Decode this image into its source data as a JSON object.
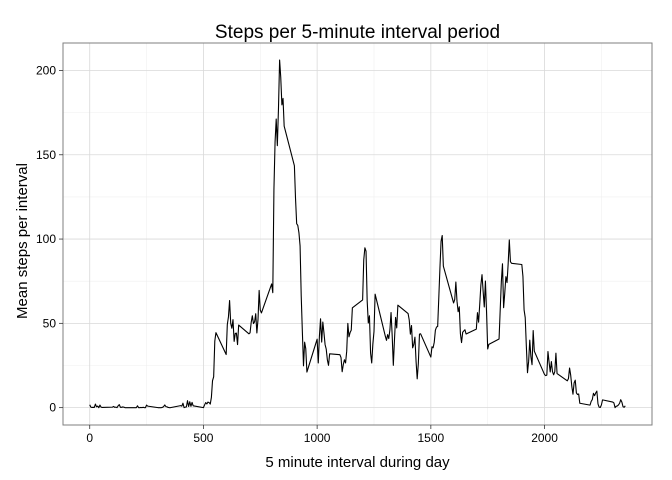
{
  "chart_data": {
    "type": "line",
    "title": "Steps per 5-minute interval period",
    "xlabel": "5 minute interval during day",
    "ylabel": "Mean steps per interval",
    "xlim": [
      -117.5,
      2472.5
    ],
    "ylim": [
      -10.3,
      216.3
    ],
    "x_ticks": [
      0,
      500,
      1000,
      1500,
      2000
    ],
    "x_minor_ticks": [
      250,
      750,
      1250,
      1750,
      2250
    ],
    "y_ticks": [
      0,
      50,
      100,
      150,
      200
    ],
    "y_minor_ticks": [
      25,
      75,
      125,
      175
    ],
    "grid": true,
    "legend": "none",
    "colors": {
      "line": "#000000",
      "grid_major": "#d9d9d9",
      "grid_minor": "#efefef",
      "border": "#7f7f7f"
    },
    "series": [
      {
        "values": [
          [
            0,
            1.7
          ],
          [
            5,
            0.3
          ],
          [
            10,
            0.1
          ],
          [
            15,
            0.2
          ],
          [
            20,
            0.1
          ],
          [
            25,
            2.1
          ],
          [
            30,
            0.5
          ],
          [
            35,
            0.9
          ],
          [
            40,
            0
          ],
          [
            45,
            1.5
          ],
          [
            50,
            0.3
          ],
          [
            55,
            0.1
          ],
          [
            100,
            0.3
          ],
          [
            105,
            0.7
          ],
          [
            110,
            0.2
          ],
          [
            115,
            0.3
          ],
          [
            120,
            0
          ],
          [
            125,
            1.1
          ],
          [
            130,
            1.8
          ],
          [
            135,
            0.2
          ],
          [
            140,
            0.2
          ],
          [
            145,
            0.4
          ],
          [
            150,
            0.3
          ],
          [
            155,
            0
          ],
          [
            200,
            0
          ],
          [
            205,
            0
          ],
          [
            210,
            1.1
          ],
          [
            215,
            0
          ],
          [
            220,
            0
          ],
          [
            225,
            0.1
          ],
          [
            230,
            0
          ],
          [
            235,
            0.2
          ],
          [
            240,
            0
          ],
          [
            245,
            0
          ],
          [
            250,
            1.5
          ],
          [
            255,
            0.9
          ],
          [
            300,
            0
          ],
          [
            305,
            0
          ],
          [
            310,
            0
          ],
          [
            315,
            0
          ],
          [
            320,
            0.2
          ],
          [
            325,
            0.6
          ],
          [
            330,
            1.6
          ],
          [
            335,
            0.6
          ],
          [
            340,
            0.5
          ],
          [
            345,
            0.1
          ],
          [
            350,
            0
          ],
          [
            355,
            0
          ],
          [
            400,
            1.2
          ],
          [
            405,
            0.9
          ],
          [
            410,
            2.6
          ],
          [
            415,
            0
          ],
          [
            420,
            0.3
          ],
          [
            425,
            0.4
          ],
          [
            430,
            4.1
          ],
          [
            435,
            0.7
          ],
          [
            440,
            3.5
          ],
          [
            445,
            0.8
          ],
          [
            450,
            3.1
          ],
          [
            455,
            1.1
          ],
          [
            500,
            0
          ],
          [
            505,
            1.6
          ],
          [
            510,
            3.0
          ],
          [
            515,
            2.2
          ],
          [
            520,
            3.3
          ],
          [
            525,
            3.0
          ],
          [
            530,
            2.1
          ],
          [
            535,
            6.1
          ],
          [
            540,
            16.0
          ],
          [
            545,
            18.3
          ],
          [
            550,
            39.5
          ],
          [
            555,
            44.5
          ],
          [
            600,
            31.5
          ],
          [
            605,
            49.3
          ],
          [
            610,
            53.8
          ],
          [
            615,
            63.5
          ],
          [
            620,
            50.0
          ],
          [
            625,
            47.1
          ],
          [
            630,
            52.2
          ],
          [
            635,
            39.3
          ],
          [
            640,
            44.0
          ],
          [
            645,
            44.2
          ],
          [
            650,
            37.4
          ],
          [
            655,
            49.0
          ],
          [
            700,
            43.8
          ],
          [
            705,
            44.4
          ],
          [
            710,
            50.5
          ],
          [
            715,
            54.5
          ],
          [
            720,
            49.9
          ],
          [
            725,
            50.9
          ],
          [
            730,
            55.7
          ],
          [
            735,
            44.3
          ],
          [
            740,
            52.3
          ],
          [
            745,
            69.5
          ],
          [
            750,
            57.8
          ],
          [
            755,
            56.2
          ],
          [
            800,
            73.4
          ],
          [
            805,
            68.2
          ],
          [
            810,
            129.4
          ],
          [
            815,
            157.5
          ],
          [
            820,
            171.2
          ],
          [
            825,
            155.4
          ],
          [
            830,
            177.3
          ],
          [
            835,
            206.2
          ],
          [
            840,
            195.9
          ],
          [
            845,
            179.6
          ],
          [
            850,
            183.4
          ],
          [
            855,
            167.0
          ],
          [
            900,
            143.5
          ],
          [
            905,
            124.0
          ],
          [
            910,
            109.1
          ],
          [
            915,
            108.1
          ],
          [
            920,
            103.7
          ],
          [
            925,
            95.9
          ],
          [
            930,
            66.2
          ],
          [
            935,
            45.2
          ],
          [
            940,
            24.8
          ],
          [
            945,
            38.8
          ],
          [
            950,
            35.0
          ],
          [
            955,
            21.1
          ],
          [
            1000,
            40.6
          ],
          [
            1005,
            26.5
          ],
          [
            1010,
            42.4
          ],
          [
            1015,
            52.7
          ],
          [
            1020,
            38.9
          ],
          [
            1025,
            50.8
          ],
          [
            1030,
            44.3
          ],
          [
            1035,
            37.4
          ],
          [
            1040,
            34.7
          ],
          [
            1045,
            28.3
          ],
          [
            1050,
            25.1
          ],
          [
            1055,
            31.9
          ],
          [
            1100,
            31.4
          ],
          [
            1105,
            29.7
          ],
          [
            1110,
            21.3
          ],
          [
            1115,
            25.5
          ],
          [
            1120,
            28.4
          ],
          [
            1125,
            26.5
          ],
          [
            1130,
            33.4
          ],
          [
            1135,
            49.98
          ],
          [
            1140,
            42.0
          ],
          [
            1145,
            44.6
          ],
          [
            1150,
            46.0
          ],
          [
            1155,
            59.2
          ],
          [
            1200,
            63.9
          ],
          [
            1205,
            87.7
          ],
          [
            1210,
            94.8
          ],
          [
            1215,
            92.8
          ],
          [
            1220,
            63.4
          ],
          [
            1225,
            50.2
          ],
          [
            1230,
            54.5
          ],
          [
            1235,
            32.4
          ],
          [
            1240,
            26.5
          ],
          [
            1245,
            37.7
          ],
          [
            1250,
            45.1
          ],
          [
            1255,
            67.3
          ],
          [
            1300,
            42.3
          ],
          [
            1305,
            39.9
          ],
          [
            1310,
            43.3
          ],
          [
            1315,
            40.98
          ],
          [
            1320,
            46.2
          ],
          [
            1325,
            56.4
          ],
          [
            1330,
            42.8
          ],
          [
            1335,
            25.1
          ],
          [
            1340,
            39.98
          ],
          [
            1345,
            53.5
          ],
          [
            1350,
            47.3
          ],
          [
            1355,
            60.8
          ],
          [
            1400,
            55.8
          ],
          [
            1405,
            51.96
          ],
          [
            1410,
            43.6
          ],
          [
            1415,
            48.7
          ],
          [
            1420,
            35.5
          ],
          [
            1425,
            37.5
          ],
          [
            1430,
            41.8
          ],
          [
            1435,
            27.5
          ],
          [
            1440,
            17.1
          ],
          [
            1445,
            26.1
          ],
          [
            1450,
            43.6
          ],
          [
            1455,
            43.8
          ],
          [
            1500,
            30.0
          ],
          [
            1505,
            36.1
          ],
          [
            1510,
            35.5
          ],
          [
            1515,
            38.8
          ],
          [
            1520,
            45.96
          ],
          [
            1525,
            47.8
          ],
          [
            1530,
            48.1
          ],
          [
            1535,
            65.3
          ],
          [
            1540,
            82.9
          ],
          [
            1545,
            98.7
          ],
          [
            1550,
            102.1
          ],
          [
            1555,
            83.96
          ],
          [
            1600,
            62.1
          ],
          [
            1605,
            64.1
          ],
          [
            1610,
            74.5
          ],
          [
            1615,
            63.2
          ],
          [
            1620,
            56.9
          ],
          [
            1625,
            59.8
          ],
          [
            1630,
            43.9
          ],
          [
            1635,
            38.6
          ],
          [
            1640,
            44.7
          ],
          [
            1645,
            45.5
          ],
          [
            1650,
            46.2
          ],
          [
            1655,
            43.7
          ],
          [
            1700,
            46.6
          ],
          [
            1705,
            56.3
          ],
          [
            1710,
            50.7
          ],
          [
            1715,
            61.2
          ],
          [
            1720,
            72.7
          ],
          [
            1725,
            78.9
          ],
          [
            1730,
            68.9
          ],
          [
            1735,
            59.7
          ],
          [
            1740,
            75.1
          ],
          [
            1745,
            56.5
          ],
          [
            1750,
            34.8
          ],
          [
            1755,
            37.5
          ],
          [
            1800,
            40.7
          ],
          [
            1805,
            58.0
          ],
          [
            1810,
            74.7
          ],
          [
            1815,
            85.3
          ],
          [
            1820,
            59.3
          ],
          [
            1825,
            67.8
          ],
          [
            1830,
            77.7
          ],
          [
            1835,
            74.2
          ],
          [
            1840,
            85.3
          ],
          [
            1845,
            99.5
          ],
          [
            1850,
            86.6
          ],
          [
            1855,
            85.6
          ],
          [
            1900,
            84.9
          ],
          [
            1905,
            77.8
          ],
          [
            1910,
            58.0
          ],
          [
            1915,
            53.4
          ],
          [
            1920,
            36.3
          ],
          [
            1925,
            20.7
          ],
          [
            1930,
            27.4
          ],
          [
            1935,
            40.0
          ],
          [
            1940,
            30.2
          ],
          [
            1945,
            25.5
          ],
          [
            1950,
            45.7
          ],
          [
            1955,
            33.5
          ],
          [
            2000,
            19.6
          ],
          [
            2005,
            19.0
          ],
          [
            2010,
            19.3
          ],
          [
            2015,
            33.3
          ],
          [
            2020,
            26.8
          ],
          [
            2025,
            21.2
          ],
          [
            2030,
            27.3
          ],
          [
            2035,
            21.3
          ],
          [
            2040,
            19.5
          ],
          [
            2045,
            21.3
          ],
          [
            2050,
            32.3
          ],
          [
            2055,
            20.2
          ],
          [
            2100,
            15.9
          ],
          [
            2105,
            17.2
          ],
          [
            2110,
            23.5
          ],
          [
            2115,
            19.2
          ],
          [
            2120,
            12.5
          ],
          [
            2125,
            8.0
          ],
          [
            2130,
            14.7
          ],
          [
            2135,
            16.3
          ],
          [
            2140,
            8.7
          ],
          [
            2145,
            7.8
          ],
          [
            2150,
            8.1
          ],
          [
            2155,
            2.6
          ],
          [
            2200,
            1.5
          ],
          [
            2205,
            3.7
          ],
          [
            2210,
            4.8
          ],
          [
            2215,
            8.5
          ],
          [
            2220,
            7.1
          ],
          [
            2225,
            8.7
          ],
          [
            2230,
            9.8
          ],
          [
            2235,
            2.2
          ],
          [
            2240,
            0.3
          ],
          [
            2245,
            0.1
          ],
          [
            2250,
            1.6
          ],
          [
            2255,
            4.6
          ],
          [
            2300,
            3.3
          ],
          [
            2305,
            2.8
          ],
          [
            2310,
            0
          ],
          [
            2315,
            0.8
          ],
          [
            2320,
            1.0
          ],
          [
            2325,
            1.6
          ],
          [
            2330,
            2.6
          ],
          [
            2335,
            4.7
          ],
          [
            2340,
            3.3
          ],
          [
            2345,
            0.6
          ],
          [
            2350,
            0.2
          ],
          [
            2355,
            1.1
          ]
        ]
      }
    ]
  }
}
